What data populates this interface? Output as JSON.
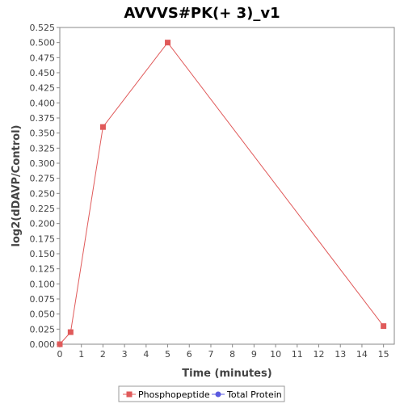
{
  "chart_data": {
    "type": "line",
    "title": "AVVVS#PK(+ 3)_v1",
    "xlabel": "Time (minutes)",
    "ylabel": "log2(dDAVP/Control)",
    "xlim": [
      0,
      15.5
    ],
    "ylim": [
      0,
      0.525
    ],
    "x_ticks": [
      "0",
      "1",
      "2",
      "3",
      "4",
      "5",
      "6",
      "7",
      "8",
      "9",
      "10",
      "11",
      "12",
      "13",
      "14",
      "15"
    ],
    "y_ticks": [
      "0.000",
      "0.025",
      "0.050",
      "0.075",
      "0.100",
      "0.125",
      "0.150",
      "0.175",
      "0.200",
      "0.225",
      "0.250",
      "0.275",
      "0.300",
      "0.325",
      "0.350",
      "0.375",
      "0.400",
      "0.425",
      "0.450",
      "0.475",
      "0.500",
      "0.525"
    ],
    "grid": false,
    "legend_position": "bottom",
    "series": [
      {
        "name": "Phosphopeptide",
        "color": "#e05a5a",
        "marker": "square",
        "x": [
          0,
          0.5,
          2,
          5,
          15
        ],
        "y": [
          0.0,
          0.02,
          0.36,
          0.5,
          0.03
        ]
      },
      {
        "name": "Total Protein",
        "color": "#5a5ae0",
        "marker": "circle",
        "x": [],
        "y": []
      }
    ]
  }
}
